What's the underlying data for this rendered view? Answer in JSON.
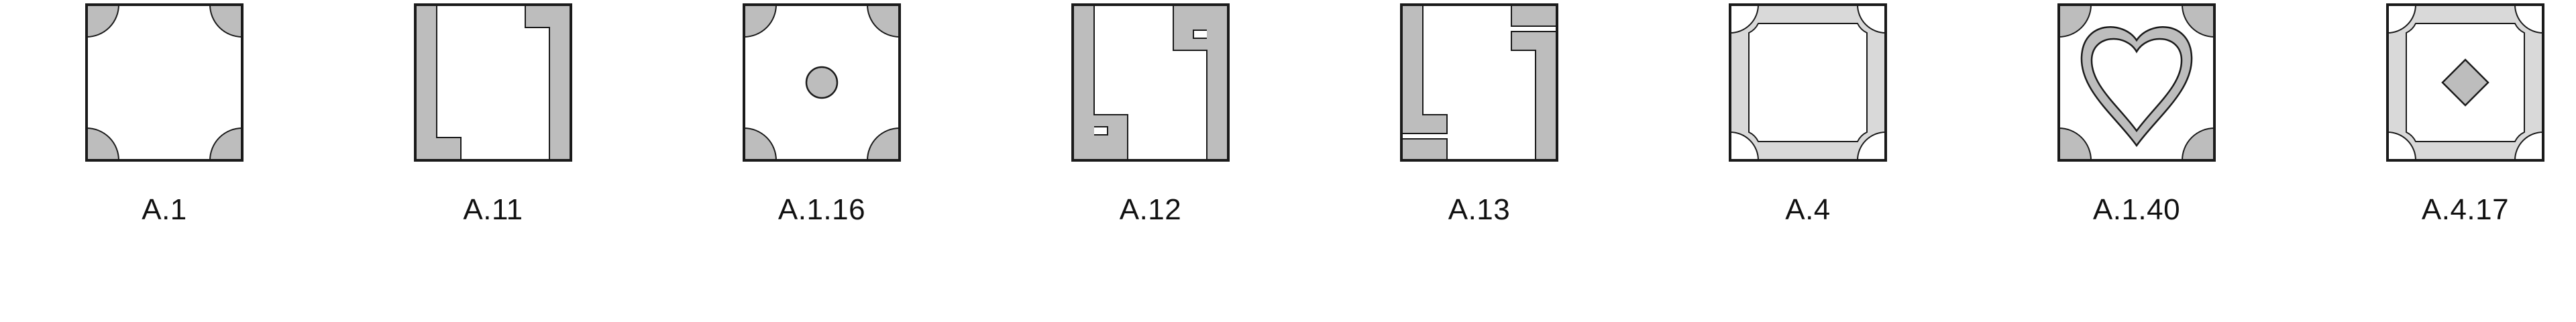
{
  "colors": {
    "stroke": "#1a1a1a",
    "fill_dark": "#bdbdbd",
    "fill_light": "#d9d9d9",
    "background": "#ffffff"
  },
  "tiles": [
    {
      "label": "A.1",
      "icon": "corner-quadrants-tile"
    },
    {
      "label": "A.11",
      "icon": "l-bracket-tile"
    },
    {
      "label": "A.1.16",
      "icon": "corner-quadrants-dot-tile"
    },
    {
      "label": "A.12",
      "icon": "hook-bracket-tile"
    },
    {
      "label": "A.13",
      "icon": "double-bar-bracket-tile"
    },
    {
      "label": "A.4",
      "icon": "octagon-frame-tile"
    },
    {
      "label": "A.1.40",
      "icon": "heart-tile"
    },
    {
      "label": "A.4.17",
      "icon": "octagon-diamond-tile"
    }
  ]
}
